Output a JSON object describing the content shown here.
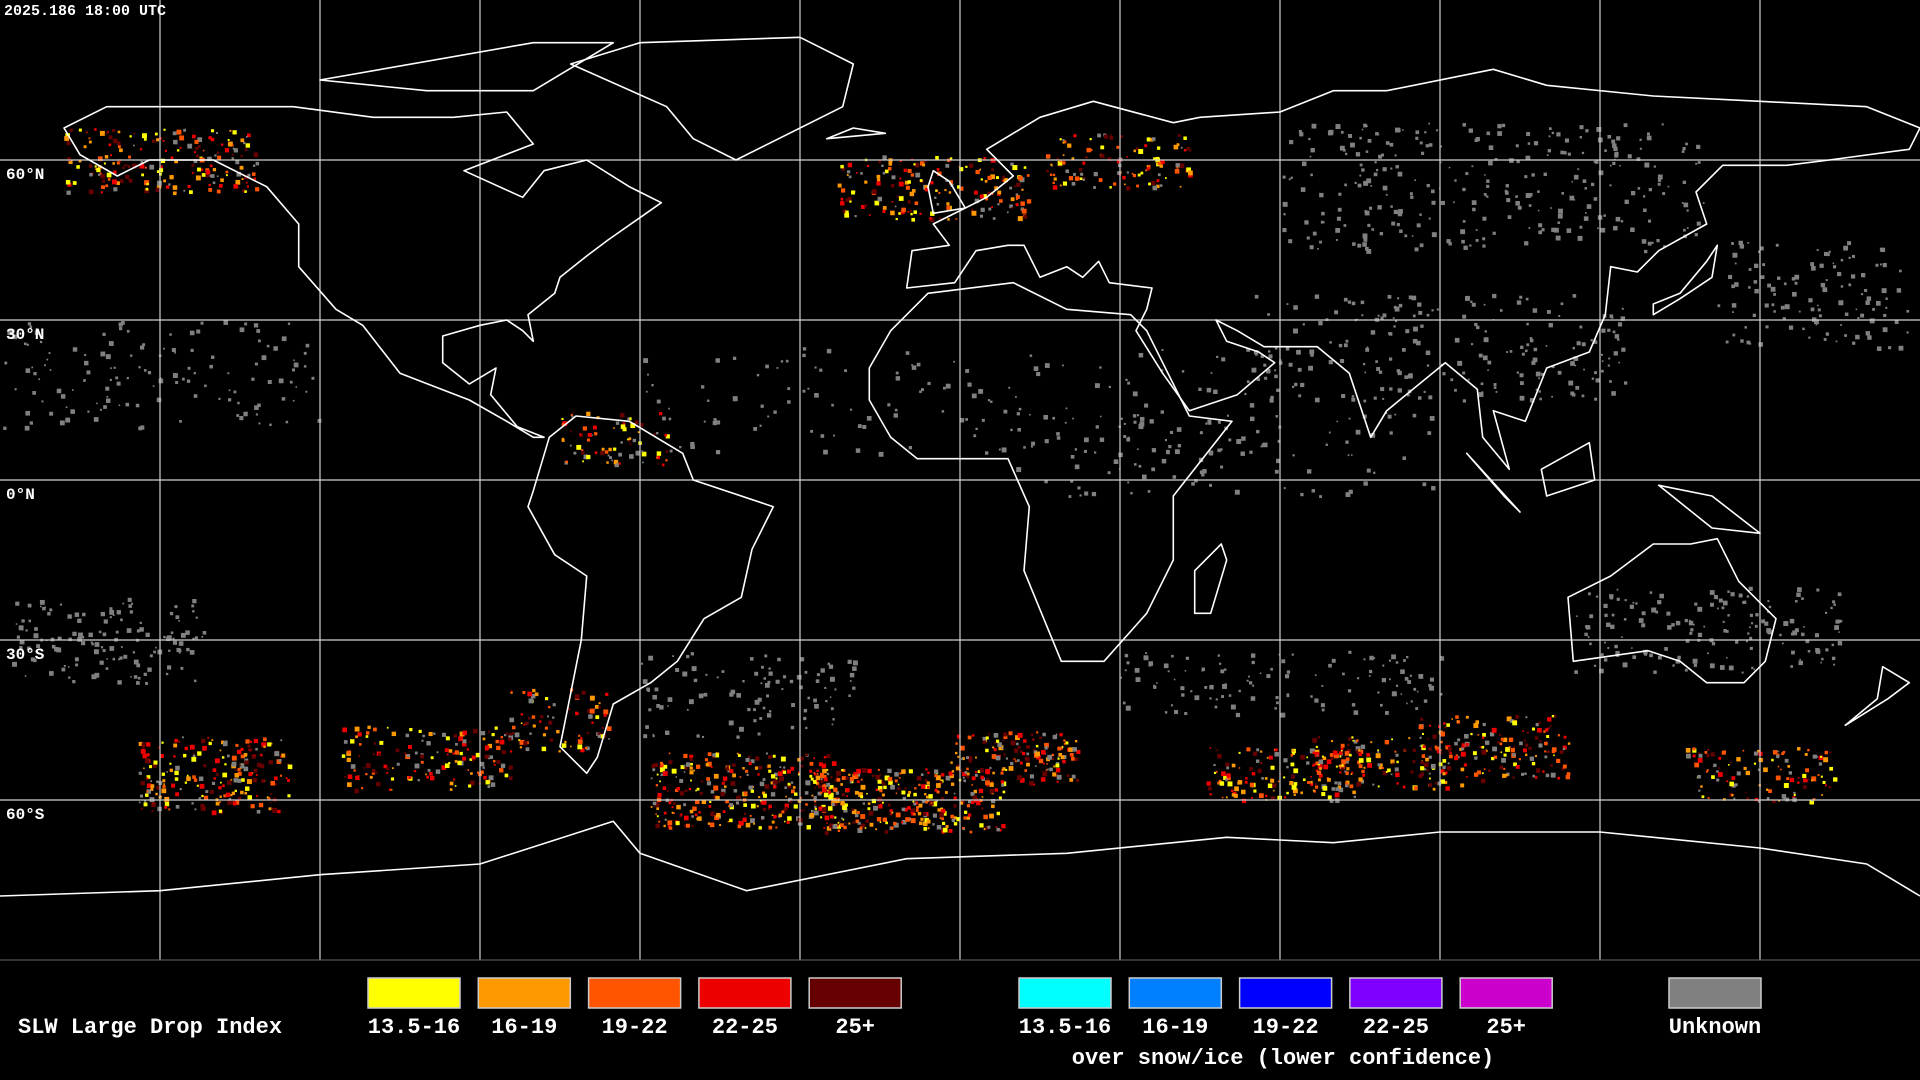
{
  "timestamp": "2025.186 18:00 UTC",
  "latitudes": [
    {
      "value": 60,
      "label": "60°N"
    },
    {
      "value": 30,
      "label": "30°N"
    },
    {
      "value": 0,
      "label": "0°N"
    },
    {
      "value": -30,
      "label": "30°S"
    },
    {
      "value": -60,
      "label": "60°S"
    }
  ],
  "legend": {
    "title": "SLW Large Drop Index",
    "items": [
      {
        "label": "13.5-16",
        "color": "#ffff00"
      },
      {
        "label": "16-19",
        "color": "#ff9900"
      },
      {
        "label": "19-22",
        "color": "#ff5500"
      },
      {
        "label": "22-25",
        "color": "#ee0000"
      },
      {
        "label": "25+",
        "color": "#660000"
      }
    ],
    "snow_items": [
      {
        "label": "13.5-16",
        "color": "#00ffff"
      },
      {
        "label": "16-19",
        "color": "#0080ff"
      },
      {
        "label": "19-22",
        "color": "#0000ff"
      },
      {
        "label": "22-25",
        "color": "#8000ff"
      },
      {
        "label": "25+",
        "color": "#cc00cc"
      }
    ],
    "snow_note": "over snow/ice (lower confidence)",
    "unknown": {
      "label": "Unknown",
      "color": "#808080"
    }
  }
}
